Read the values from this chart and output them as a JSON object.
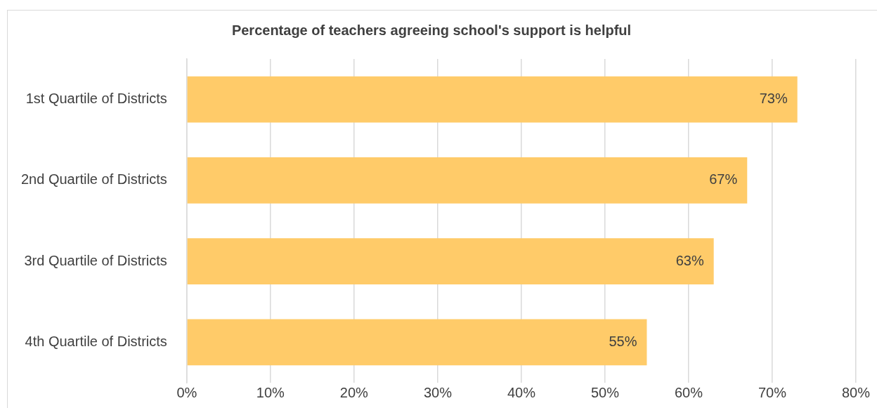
{
  "chart_data": {
    "type": "bar",
    "orientation": "horizontal",
    "title": "Percentage of teachers agreeing school's support is helpful",
    "categories": [
      "1st Quartile of Districts",
      "2nd Quartile of Districts",
      "3rd Quartile of Districts",
      "4th Quartile of Districts"
    ],
    "values": [
      73,
      67,
      63,
      55
    ],
    "value_labels": [
      "73%",
      "67%",
      "63%",
      "55%"
    ],
    "color": "#ffcb69",
    "xlim": [
      0,
      80
    ],
    "xticks": [
      {
        "value": 0,
        "label": "0%"
      },
      {
        "value": 10,
        "label": "10%"
      },
      {
        "value": 20,
        "label": "20%"
      },
      {
        "value": 30,
        "label": "30%"
      },
      {
        "value": 40,
        "label": "40%"
      },
      {
        "value": 50,
        "label": "50%"
      },
      {
        "value": 60,
        "label": "60%"
      },
      {
        "value": 70,
        "label": "70%"
      },
      {
        "value": 80,
        "label": "80%"
      }
    ],
    "grid": "x",
    "legend": false
  }
}
